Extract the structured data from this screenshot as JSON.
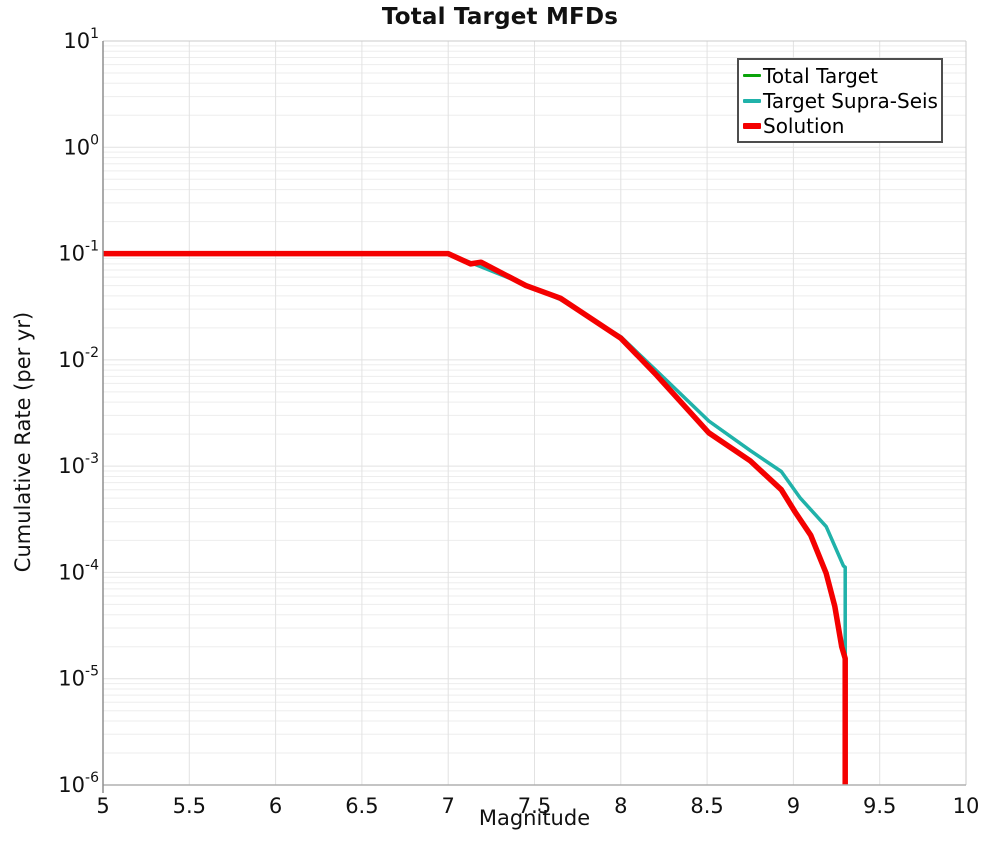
{
  "title": "Total Target MFDs",
  "chart_data": {
    "type": "line",
    "title": "Total Target MFDs",
    "xlabel": "Magnitude",
    "ylabel": "Cumulative Rate (per yr)",
    "xlim": [
      5,
      10
    ],
    "ylim": [
      1e-06,
      10
    ],
    "yscale": "log",
    "grid": true,
    "legend_position": "upper right",
    "x_ticks": [
      5,
      5.5,
      6,
      6.5,
      7,
      7.5,
      8,
      8.5,
      9,
      9.5,
      10
    ],
    "y_tick_exponents": [
      1,
      0,
      -1,
      -2,
      -3,
      -4,
      -5,
      -6
    ],
    "series": [
      {
        "name": "Total Target",
        "color": "#0aa30a",
        "width": 3,
        "points": [
          [
            5.0,
            0.1
          ],
          [
            7.0,
            0.1
          ],
          [
            7.45,
            0.051
          ],
          [
            7.65,
            0.037
          ],
          [
            8.0,
            0.0165
          ],
          [
            8.2,
            0.0081
          ],
          [
            8.51,
            0.00266
          ],
          [
            8.75,
            0.0014
          ],
          [
            8.93,
            0.00089
          ],
          [
            9.04,
            0.0005
          ],
          [
            9.19,
            0.00027
          ],
          [
            9.29,
            0.000115
          ],
          [
            9.3,
            0.000112
          ],
          [
            9.3,
            1e-06
          ]
        ]
      },
      {
        "name": "Target Supra-Seis",
        "color": "#20b2aa",
        "width": 3.5,
        "points": [
          [
            5.0,
            0.1
          ],
          [
            7.0,
            0.1
          ],
          [
            7.45,
            0.051
          ],
          [
            7.65,
            0.037
          ],
          [
            8.0,
            0.0165
          ],
          [
            8.2,
            0.0081
          ],
          [
            8.51,
            0.00266
          ],
          [
            8.75,
            0.0014
          ],
          [
            8.93,
            0.00089
          ],
          [
            9.04,
            0.0005
          ],
          [
            9.19,
            0.00027
          ],
          [
            9.29,
            0.000115
          ],
          [
            9.3,
            0.000112
          ],
          [
            9.3,
            1e-06
          ]
        ]
      },
      {
        "name": "Solution",
        "color": "#f40000",
        "width": 5.5,
        "points": [
          [
            5.0,
            0.1
          ],
          [
            7.0,
            0.1
          ],
          [
            7.13,
            0.08
          ],
          [
            7.19,
            0.083
          ],
          [
            7.45,
            0.05
          ],
          [
            7.65,
            0.038
          ],
          [
            8.0,
            0.016
          ],
          [
            8.2,
            0.0074
          ],
          [
            8.51,
            0.00206
          ],
          [
            8.75,
            0.00112
          ],
          [
            8.93,
            0.0006
          ],
          [
            9.01,
            0.00037
          ],
          [
            9.1,
            0.000224
          ],
          [
            9.19,
            9.8e-05
          ],
          [
            9.24,
            4.8e-05
          ],
          [
            9.28,
            2e-05
          ],
          [
            9.3,
            1.55e-05
          ],
          [
            9.3,
            1e-06
          ]
        ]
      }
    ],
    "styles": {
      "grid_minor_color": "#ededed",
      "grid_major_color": "#e2e2e2",
      "spine_left_color": "#8f8f8f",
      "spine_bottom_color": "#b0b0b0",
      "spine_top_color": "#cbcbcb",
      "spine_right_color": "#cbcbcb"
    }
  }
}
